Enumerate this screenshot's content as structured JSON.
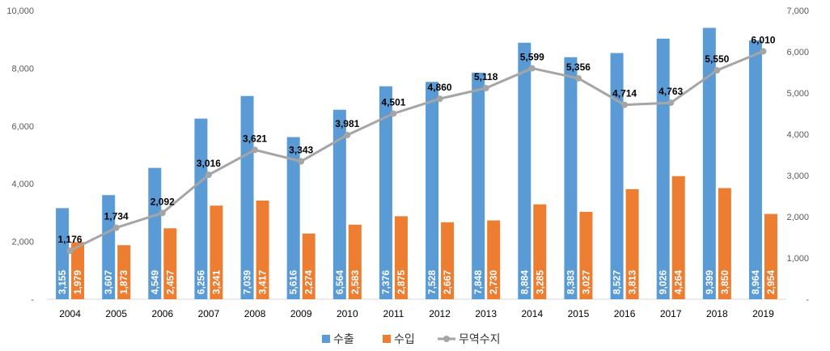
{
  "chart_data": {
    "type": "bar",
    "categories": [
      "2004",
      "2005",
      "2006",
      "2007",
      "2008",
      "2009",
      "2010",
      "2011",
      "2012",
      "2013",
      "2014",
      "2015",
      "2016",
      "2017",
      "2018",
      "2019"
    ],
    "series": [
      {
        "name": "수출",
        "type": "bar",
        "axis": "left",
        "color": "#5b9bd5",
        "values": [
          3155,
          3607,
          4549,
          6256,
          7039,
          5616,
          6564,
          7376,
          7528,
          7848,
          8884,
          8383,
          8527,
          9026,
          9399,
          8964
        ],
        "labels": [
          "3,155",
          "3,607",
          "4,549",
          "6,256",
          "7,039",
          "5,616",
          "6,564",
          "7,376",
          "7,528",
          "7,848",
          "8,884",
          "8,383",
          "8,527",
          "9,026",
          "9,399",
          "8,964"
        ]
      },
      {
        "name": "수입",
        "type": "bar",
        "axis": "left",
        "color": "#ed7d31",
        "values": [
          1979,
          1873,
          2457,
          3241,
          3417,
          2274,
          2583,
          2875,
          2667,
          2730,
          3285,
          3027,
          3813,
          4264,
          3850,
          2954
        ],
        "labels": [
          "1,979",
          "1,873",
          "2,457",
          "3,241",
          "3,417",
          "2,274",
          "2,583",
          "2,875",
          "2,667",
          "2,730",
          "3,285",
          "3,027",
          "3,813",
          "4,264",
          "3,850",
          "2,954"
        ]
      },
      {
        "name": "무역수지",
        "type": "line",
        "axis": "right",
        "color": "#a5a5a5",
        "values": [
          1176,
          1734,
          2092,
          3016,
          3621,
          3343,
          3981,
          4501,
          4860,
          5118,
          5599,
          5356,
          4714,
          4763,
          5550,
          6010
        ],
        "labels": [
          "1,176",
          "1,734",
          "2,092",
          "3,016",
          "3,621",
          "3,343",
          "3,981",
          "4,501",
          "4,860",
          "5,118",
          "5,599",
          "5,356",
          "4,714",
          "4,763",
          "5,550",
          "6,010"
        ]
      }
    ],
    "y_left": {
      "range": [
        0,
        10000
      ],
      "ticks": [
        "-",
        "2,000",
        "4,000",
        "6,000",
        "8,000",
        "10,000"
      ]
    },
    "y_right": {
      "range": [
        0,
        7000
      ],
      "ticks": [
        "-",
        "1,000",
        "2,000",
        "3,000",
        "4,000",
        "5,000",
        "6,000",
        "7,000"
      ]
    },
    "grid": false,
    "legend": "bottom"
  }
}
